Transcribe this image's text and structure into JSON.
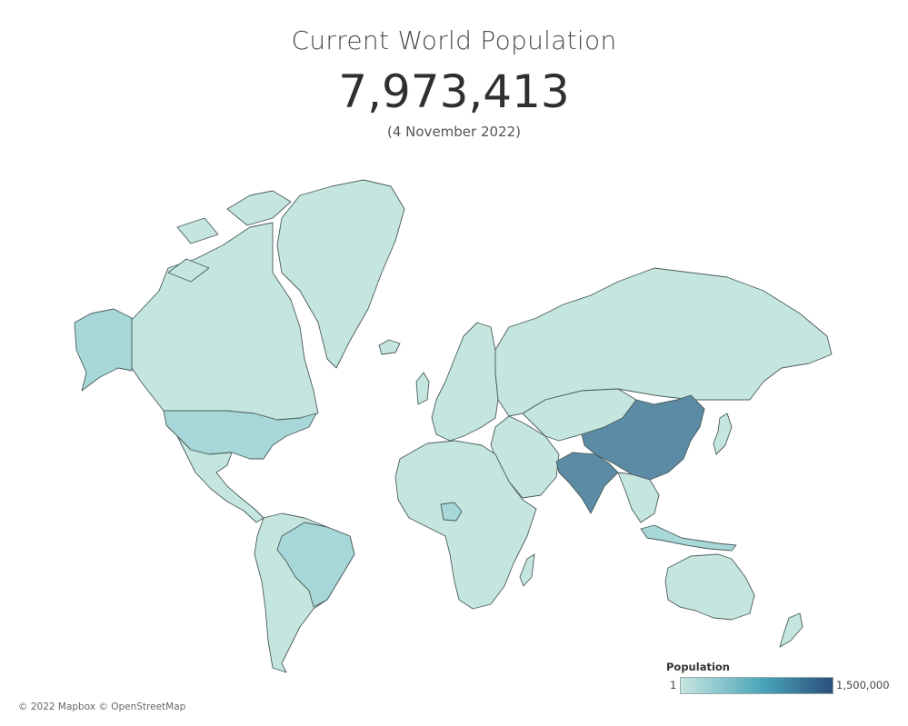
{
  "header": {
    "title": "Current World Population",
    "population": "7,973,413",
    "date": "(4 November 2022)"
  },
  "legend": {
    "title": "Population",
    "min_label": "1",
    "max_label": "1,500,000",
    "min_color": "#c7e6e1",
    "max_color": "#2c4f7c"
  },
  "attribution": "© 2022 Mapbox © OpenStreetMap",
  "colors": {
    "low": "#c5e6df",
    "mid_low": "#a7d7d8",
    "high": "#5c8ca5",
    "border": "#4a5a5c"
  },
  "map": {
    "projection": "mercator",
    "regions": [
      {
        "name": "Greenland",
        "level": "low"
      },
      {
        "name": "Canada",
        "level": "low"
      },
      {
        "name": "Alaska",
        "level": "mid_low"
      },
      {
        "name": "United States",
        "level": "mid_low"
      },
      {
        "name": "Mexico",
        "level": "low"
      },
      {
        "name": "South America",
        "level": "low"
      },
      {
        "name": "Brazil",
        "level": "mid_low"
      },
      {
        "name": "Europe",
        "level": "low"
      },
      {
        "name": "Africa",
        "level": "low"
      },
      {
        "name": "Nigeria",
        "level": "mid_low"
      },
      {
        "name": "Russia",
        "level": "low"
      },
      {
        "name": "Middle East",
        "level": "low"
      },
      {
        "name": "Central Asia",
        "level": "low"
      },
      {
        "name": "China",
        "level": "high"
      },
      {
        "name": "India",
        "level": "high"
      },
      {
        "name": "Southeast Asia",
        "level": "low"
      },
      {
        "name": "Indonesia",
        "level": "mid_low"
      },
      {
        "name": "Japan",
        "level": "low"
      },
      {
        "name": "Australia",
        "level": "low"
      },
      {
        "name": "New Zealand",
        "level": "low"
      },
      {
        "name": "Madagascar",
        "level": "low"
      },
      {
        "name": "Iceland",
        "level": "low"
      },
      {
        "name": "United Kingdom",
        "level": "low"
      }
    ]
  }
}
